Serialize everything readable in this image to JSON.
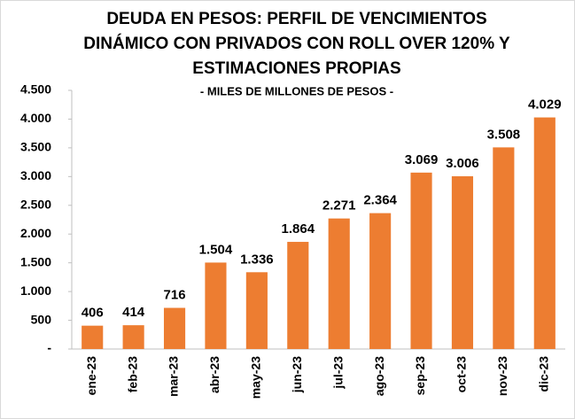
{
  "chart_data": {
    "type": "bar",
    "title": [
      "DEUDA EN PESOS: PERFIL DE VENCIMIENTOS",
      "DINÁMICO CON PRIVADOS CON ROLL OVER 120% Y",
      "ESTIMACIONES PROPIAS"
    ],
    "subtitle": "- MILES DE MILLONES DE PESOS -",
    "categories": [
      "ene-23",
      "feb-23",
      "mar-23",
      "abr-23",
      "may-23",
      "jun-23",
      "jul-23",
      "ago-23",
      "sep-23",
      "oct-23",
      "nov-23",
      "dic-23"
    ],
    "values": [
      406,
      414,
      716,
      1504,
      1336,
      1864,
      2271,
      2364,
      3069,
      3006,
      3508,
      4029
    ],
    "value_labels": [
      "406",
      "414",
      "716",
      "1.504",
      "1.336",
      "1.864",
      "2.271",
      "2.364",
      "3.069",
      "3.006",
      "3.508",
      "4.029"
    ],
    "color": "#ed7d31",
    "ylim": [
      0,
      4500
    ],
    "yticks": [
      {
        "value": 0,
        "label": "-"
      },
      500,
      {
        "value": 1000,
        "label": "1.000"
      },
      {
        "value": 1500,
        "label": "1.500"
      },
      {
        "value": 2000,
        "label": "2.000"
      },
      {
        "value": 2500,
        "label": "2.500"
      },
      {
        "value": 3000,
        "label": "3.000"
      },
      {
        "value": 3500,
        "label": "3.500"
      },
      {
        "value": 4000,
        "label": "4.000"
      },
      {
        "value": 4500,
        "label": "4.500"
      }
    ],
    "grid": false
  }
}
